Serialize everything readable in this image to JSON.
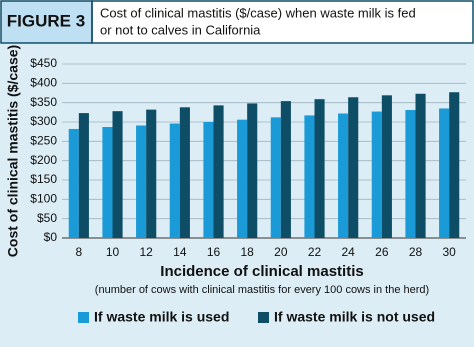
{
  "figure_label": "FIGURE 3",
  "chart_data": {
    "type": "bar",
    "title": [
      "Cost of clinical mastitis ($/case) when waste milk is fed",
      "or not to calves in California"
    ],
    "y_label": "Cost of clinical mastitis ($/case)",
    "x_label": "Incidence of clinical mastitis",
    "x_sublabel": "(number of cows with clinical mastitis for every 100 cows in the herd)",
    "categories": [
      "8",
      "10",
      "12",
      "14",
      "16",
      "18",
      "20",
      "22",
      "24",
      "26",
      "28",
      "30"
    ],
    "series": [
      {
        "name": "If waste milk is used",
        "color": "#1a9ad6",
        "values": [
          282,
          287,
          291,
          296,
          300,
          306,
          312,
          317,
          322,
          327,
          331,
          335
        ]
      },
      {
        "name": "If waste milk is not used",
        "color": "#0e4d66",
        "values": [
          323,
          328,
          332,
          338,
          343,
          348,
          354,
          359,
          364,
          369,
          373,
          377
        ]
      }
    ],
    "ylim": [
      0,
      450
    ],
    "yticks": [
      {
        "value": 0,
        "label": "$0"
      },
      {
        "value": 50,
        "label": "$50"
      },
      {
        "value": 100,
        "label": "$100"
      },
      {
        "value": 150,
        "label": "$150"
      },
      {
        "value": 200,
        "label": "$200"
      },
      {
        "value": 250,
        "label": "$250"
      },
      {
        "value": 300,
        "label": "$300"
      },
      {
        "value": 350,
        "label": "$350"
      },
      {
        "value": 400,
        "label": "$400"
      },
      {
        "value": 450,
        "label": "$450"
      }
    ],
    "grid": true
  }
}
